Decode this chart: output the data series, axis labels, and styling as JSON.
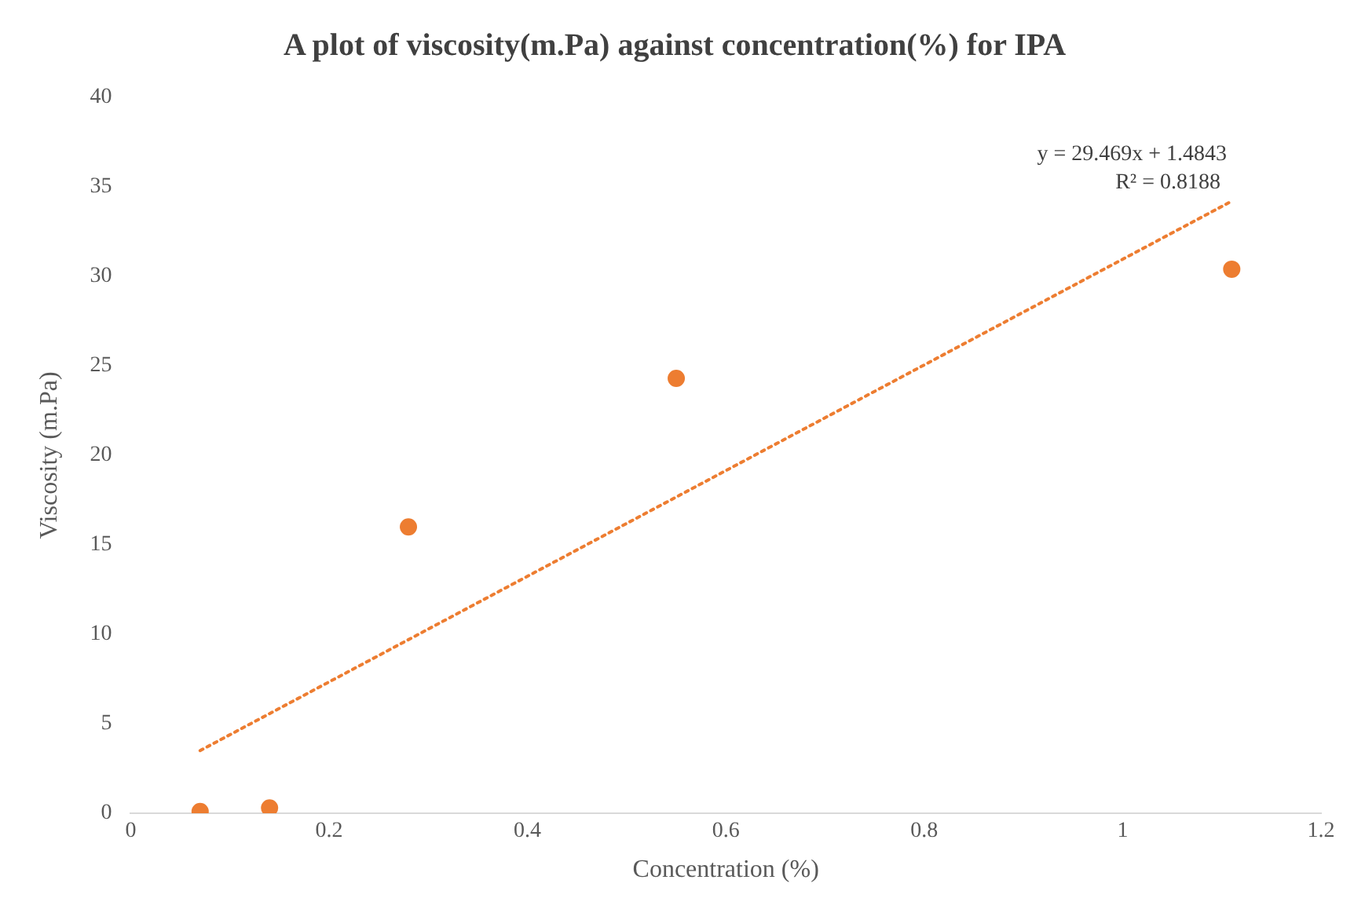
{
  "chart_data": {
    "type": "scatter",
    "title": "A plot of viscosity(m.Pa) against concentration(%) for IPA",
    "xlabel": "Concentration (%)",
    "ylabel": "Viscosity (m.Pa)",
    "xlim": [
      0,
      1.2
    ],
    "xticks": [
      0,
      0.2,
      0.4,
      0.6,
      0.8,
      1,
      1.2
    ],
    "ylim": [
      0,
      40
    ],
    "yticks": [
      0,
      5,
      10,
      15,
      20,
      25,
      30,
      35,
      40
    ],
    "grid": false,
    "legend": false,
    "marker": "circle",
    "series": [
      {
        "type": "scatter",
        "color": "#ed7d31",
        "x": [
          0.07,
          0.14,
          0.28,
          0.55,
          1.11
        ],
        "values": [
          0.1,
          0.3,
          16.0,
          24.3,
          30.4
        ]
      },
      {
        "type": "line",
        "color": "#ed7d31",
        "line_style": "dotted",
        "marker": "none",
        "x": [
          0.07,
          1.11
        ],
        "values": [
          3.5,
          34.2
        ]
      }
    ],
    "annotations": [
      "y = 29.469x + 1.4843",
      "R² = 0.8188"
    ]
  }
}
